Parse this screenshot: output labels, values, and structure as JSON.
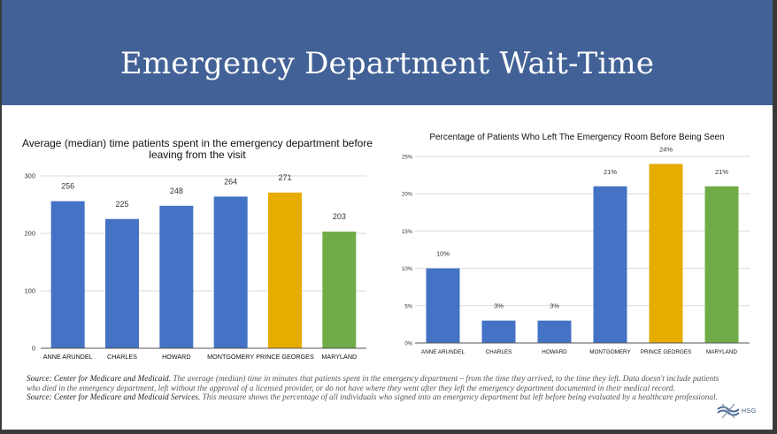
{
  "header": {
    "title": "Emergency Department Wait-Time"
  },
  "colors": {
    "header_bg": "#426196",
    "blue": "#4472c4",
    "gold": "#e6ac00",
    "green": "#6fac47",
    "grid": "#d9d9d9",
    "axis": "#555555"
  },
  "chart_data": [
    {
      "type": "bar",
      "title": "Average (median) time patients spent in the emergency department before",
      "title_line2": "leaving from the visit",
      "xlabel": "",
      "ylabel": "",
      "categories": [
        "ANNE ARUNDEL",
        "CHARLES",
        "HOWARD",
        "MONTGOMERY",
        "PRINCE GEORGES",
        "MARYLAND"
      ],
      "values": [
        256,
        225,
        248,
        264,
        271,
        203
      ],
      "value_labels": [
        "256",
        "225",
        "248",
        "264",
        "271",
        "203"
      ],
      "bar_colors": [
        "blue",
        "blue",
        "blue",
        "blue",
        "gold",
        "green"
      ],
      "ylim": [
        0,
        300
      ],
      "yticks": [
        0,
        100,
        200,
        300
      ],
      "ytick_labels": [
        "0",
        "100",
        "200",
        "300"
      ],
      "grid": true,
      "legend": "none"
    },
    {
      "type": "bar",
      "title": "Percentage of Patients Who Left The Emergency Room Before Being Seen",
      "xlabel": "",
      "ylabel": "",
      "categories": [
        "ANNE ARUNDEL",
        "CHARLES",
        "HOWARD",
        "MONTGOMERY",
        "PRINCE GEORGES",
        "MARYLAND"
      ],
      "values": [
        10,
        3,
        3,
        21,
        24,
        21
      ],
      "value_labels": [
        "10%",
        "3%",
        "3%",
        "21%",
        "24%",
        "21%"
      ],
      "bar_colors": [
        "blue",
        "blue",
        "blue",
        "blue",
        "gold",
        "green"
      ],
      "ylim": [
        0,
        25
      ],
      "yticks": [
        0,
        5,
        10,
        15,
        20,
        25
      ],
      "ytick_labels": [
        "0%",
        "5%",
        "10%",
        "15%",
        "20%",
        "25%"
      ],
      "grid": true,
      "legend": "none"
    }
  ],
  "notes": {
    "source1_label": "Source: Center for Medicare and Medicaid.",
    "source1_text": " The average (median) time in minutes that patients spent in the emergency department – from the time they arrived, to the time they left. Data doesn't include patients who died in the emergency department, left without the approval of a licensed provider, or do not have where they went after they left the emergency department documented in their medical record.",
    "source2_label": "Source: Center for Medicare and Medicaid Services.",
    "source2_text": " This measure shows the percentage of all individuals who signed into an emergency department but left before being evaluated by a healthcare professional."
  },
  "logo": {
    "text": "HSG",
    "icon": "hsg-logo-icon"
  }
}
